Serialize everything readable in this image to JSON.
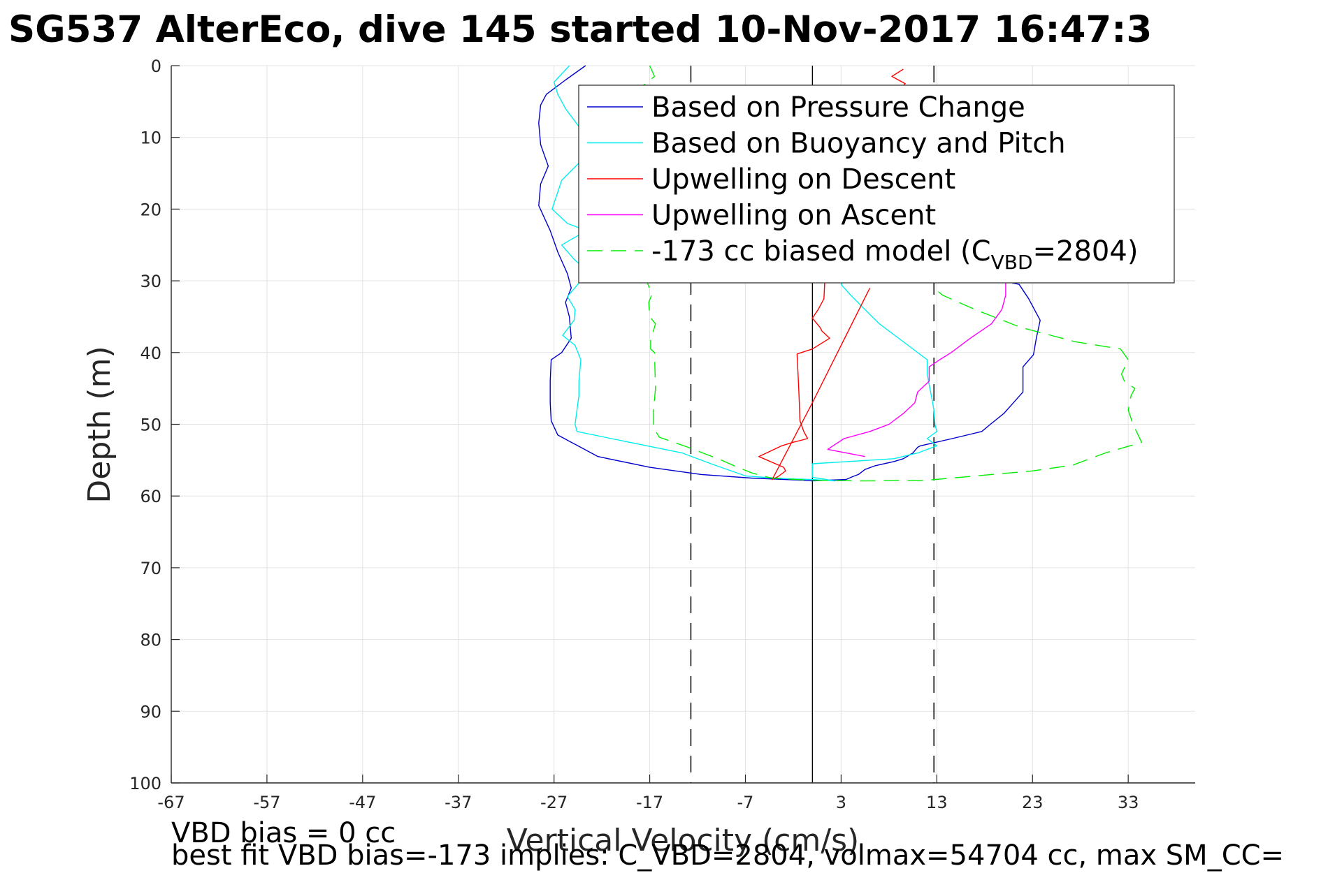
{
  "chart_data": {
    "type": "line",
    "title": "SG537 AlterEco, dive 145 started 10-Nov-2017 16:47:3",
    "xlabel": "Vertical Velocity (cm/s)",
    "ylabel": "Depth (m)",
    "xlim": [
      -67,
      40
    ],
    "ylim": [
      0,
      100
    ],
    "y_reversed": true,
    "grid": true,
    "xticks": [
      -67,
      -57,
      -47,
      -37,
      -27,
      -17,
      -7,
      3,
      13,
      23,
      33
    ],
    "yticks": [
      0,
      10,
      20,
      30,
      40,
      50,
      60,
      70,
      80,
      90,
      100
    ],
    "legend_position": "top-right",
    "reference_lines": {
      "solid_x": 0,
      "dashed_x": [
        -12.7,
        12.7
      ],
      "color": "#000000"
    },
    "series": [
      {
        "name": "Based on Pressure Change",
        "color": "#0000cc",
        "style": "solid",
        "points": [
          [
            -23.7,
            0
          ],
          [
            -25.8,
            2
          ],
          [
            -27.8,
            4
          ],
          [
            -28.4,
            5.5
          ],
          [
            -28.6,
            8
          ],
          [
            -28.4,
            11
          ],
          [
            -27.6,
            14
          ],
          [
            -28.4,
            16.5
          ],
          [
            -28.6,
            19.5
          ],
          [
            -27.4,
            23
          ],
          [
            -26.6,
            26
          ],
          [
            -25.6,
            29
          ],
          [
            -25.2,
            31
          ],
          [
            -25.8,
            33
          ],
          [
            -25.4,
            35
          ],
          [
            -25.2,
            38
          ],
          [
            -26.2,
            40
          ],
          [
            -27.3,
            41
          ],
          [
            -27.4,
            44
          ],
          [
            -27.4,
            47
          ],
          [
            -27.3,
            49.5
          ],
          [
            -26.6,
            51.5
          ],
          [
            -25.2,
            52.5
          ],
          [
            -22.4,
            54.5
          ],
          [
            -17,
            56
          ],
          [
            -11.6,
            57
          ],
          [
            -6.4,
            57.5
          ],
          [
            -1,
            57.8
          ],
          [
            0,
            57.9
          ],
          [
            1.5,
            57.8
          ],
          [
            3.5,
            57.7
          ],
          [
            4.2,
            57.3
          ],
          [
            4.8,
            57
          ],
          [
            5.5,
            56.3
          ],
          [
            6.5,
            55.8
          ],
          [
            8.5,
            55.2
          ],
          [
            9.5,
            54.8
          ],
          [
            10.5,
            54
          ],
          [
            11,
            53.2
          ],
          [
            11.3,
            53
          ],
          [
            14.6,
            52
          ],
          [
            17.7,
            51
          ],
          [
            18.6,
            50
          ],
          [
            20,
            48.5
          ],
          [
            21,
            47
          ],
          [
            22,
            45.5
          ],
          [
            22,
            44
          ],
          [
            22,
            42
          ],
          [
            23.1,
            40.3
          ],
          [
            23.4,
            38
          ],
          [
            23.8,
            35.5
          ],
          [
            22.6,
            32.5
          ],
          [
            21.6,
            30.5
          ],
          [
            19.9,
            30
          ]
        ]
      },
      {
        "name": "Based on Buoyancy and Pitch",
        "color": "#00eeee",
        "style": "solid",
        "points": [
          [
            -25.4,
            0
          ],
          [
            -27,
            2.3
          ],
          [
            -26.6,
            4
          ],
          [
            -25.8,
            6
          ],
          [
            -24.4,
            8.5
          ],
          [
            -23.2,
            10.5
          ],
          [
            -23.6,
            12.5
          ],
          [
            -26.2,
            16
          ],
          [
            -27.2,
            20
          ],
          [
            -25.6,
            22
          ],
          [
            -23.6,
            23
          ],
          [
            -26.2,
            25
          ],
          [
            -24.9,
            27
          ],
          [
            -23.6,
            28.5
          ],
          [
            -24.2,
            30
          ],
          [
            -25.6,
            32.2
          ],
          [
            -24.8,
            34
          ],
          [
            -24.9,
            35.5
          ],
          [
            -26.1,
            37.6
          ],
          [
            -24.8,
            39
          ],
          [
            -24.2,
            41
          ],
          [
            -24.4,
            44
          ],
          [
            -24.4,
            46
          ],
          [
            -24.6,
            48
          ],
          [
            -24.8,
            50
          ],
          [
            -24.6,
            51
          ],
          [
            -21,
            52
          ],
          [
            -13.6,
            54
          ],
          [
            -10.6,
            55.5
          ],
          [
            -7,
            57.2
          ],
          [
            -5,
            57.4
          ],
          [
            -2.3,
            57.6
          ],
          [
            0,
            57.7
          ],
          [
            2.4,
            57.9
          ],
          [
            0,
            57.4
          ],
          [
            0,
            55.5
          ],
          [
            8.5,
            54.8
          ],
          [
            11,
            54
          ],
          [
            13,
            53
          ],
          [
            12,
            52
          ],
          [
            13,
            51
          ],
          [
            12.8,
            50
          ],
          [
            12.7,
            48
          ],
          [
            12.5,
            46.5
          ],
          [
            12.2,
            44.5
          ],
          [
            12,
            43
          ],
          [
            12,
            41
          ],
          [
            10,
            39
          ],
          [
            7,
            36
          ],
          [
            5.5,
            34
          ],
          [
            4,
            32
          ],
          [
            3,
            30.5
          ],
          [
            4.5,
            28
          ]
        ]
      },
      {
        "name": "Upwelling on Descent",
        "color": "#ff0000",
        "style": "solid",
        "points": [
          [
            9.5,
            0.5
          ],
          [
            8.3,
            1.5
          ],
          [
            9.7,
            2.5
          ],
          [
            8.8,
            4
          ],
          [
            7.5,
            5.5
          ],
          [
            1.5,
            8.5
          ],
          [
            1.3,
            12
          ],
          [
            1.3,
            16
          ],
          [
            1.3,
            20
          ],
          [
            1.3,
            25
          ],
          [
            1.3,
            30
          ],
          [
            1.2,
            32.5
          ],
          [
            0.6,
            34
          ],
          [
            0,
            35.2
          ],
          [
            0.8,
            36.5
          ],
          [
            1,
            37
          ],
          [
            1.8,
            38
          ],
          [
            0,
            39.5
          ],
          [
            -1.6,
            40.2
          ],
          [
            -1.5,
            43
          ],
          [
            -1.4,
            46
          ],
          [
            -1.3,
            49.5
          ],
          [
            -0.9,
            51
          ],
          [
            -0.5,
            52
          ],
          [
            -2,
            52.5
          ],
          [
            -3.2,
            53
          ],
          [
            -5.6,
            54.5
          ],
          [
            -3,
            56
          ],
          [
            -2.8,
            56.5
          ],
          [
            -3.6,
            57.3
          ],
          [
            -4.2,
            57.7
          ],
          [
            0,
            47
          ],
          [
            3,
            39
          ],
          [
            6,
            31
          ]
        ]
      },
      {
        "name": "Upwelling on Ascent",
        "color": "#ff00ff",
        "style": "solid",
        "points": [
          [
            5.5,
            54.5
          ],
          [
            1.6,
            53.5
          ],
          [
            3.3,
            52
          ],
          [
            6,
            51
          ],
          [
            8,
            50
          ],
          [
            9.5,
            48.5
          ],
          [
            10.7,
            47
          ],
          [
            11,
            45.5
          ],
          [
            12.2,
            44
          ],
          [
            12.2,
            42
          ],
          [
            13.3,
            41
          ],
          [
            14.5,
            40
          ],
          [
            16.5,
            38
          ],
          [
            18.7,
            36
          ],
          [
            19.8,
            34
          ],
          [
            20.2,
            32
          ],
          [
            20.2,
            30
          ]
        ]
      },
      {
        "name": "-173 cc biased model (C_VBD=2804)",
        "color": "#00ee00",
        "style": "dashed",
        "points": [
          [
            -17,
            0
          ],
          [
            -16.5,
            1.5
          ],
          [
            -17.7,
            2.8
          ],
          [
            -17.4,
            5.2
          ],
          [
            -17.3,
            30
          ],
          [
            -16.8,
            32
          ],
          [
            -17.1,
            33
          ],
          [
            -17,
            35
          ],
          [
            -16.4,
            36
          ],
          [
            -16.9,
            38.3
          ],
          [
            -16.9,
            39.5
          ],
          [
            -16.5,
            40
          ],
          [
            -16.4,
            45
          ],
          [
            -16.6,
            48
          ],
          [
            -16.6,
            50.5
          ],
          [
            -16,
            51.8
          ],
          [
            -13,
            53.2
          ],
          [
            -9.5,
            55
          ],
          [
            -7.8,
            56
          ],
          [
            -6.3,
            56.8
          ],
          [
            -4.3,
            57.5
          ],
          [
            -1.6,
            57.7
          ],
          [
            0,
            57.8
          ],
          [
            5.5,
            57.9
          ],
          [
            11.9,
            57.8
          ],
          [
            14.6,
            57.5
          ],
          [
            18.7,
            57
          ],
          [
            23,
            56.5
          ],
          [
            27.2,
            55.7
          ],
          [
            30.6,
            54
          ],
          [
            33.7,
            52.8
          ],
          [
            34.4,
            52.5
          ],
          [
            33.5,
            50
          ],
          [
            33,
            48
          ],
          [
            33.3,
            46
          ],
          [
            33.7,
            45
          ],
          [
            32.6,
            44
          ],
          [
            32.3,
            43
          ],
          [
            33,
            41
          ],
          [
            32.2,
            39.5
          ],
          [
            27.5,
            38.5
          ],
          [
            21.8,
            36.5
          ],
          [
            17,
            34
          ],
          [
            13.6,
            32
          ],
          [
            12.7,
            31
          ]
        ]
      }
    ],
    "legend_labels": [
      {
        "text": "Based on Pressure Change"
      },
      {
        "text": "Based on Buoyancy and Pitch"
      },
      {
        "text": "Upwelling on Descent"
      },
      {
        "text": "Upwelling on Ascent"
      },
      {
        "text_before": "-173 cc biased model (C",
        "subscript": "VBD",
        "text_after": "=2804)"
      }
    ],
    "annotations": [
      "VBD bias = 0 cc",
      "best fit VBD bias=-173 implies: C_VBD=2804, volmax=54704 cc, max SM_CC="
    ]
  }
}
